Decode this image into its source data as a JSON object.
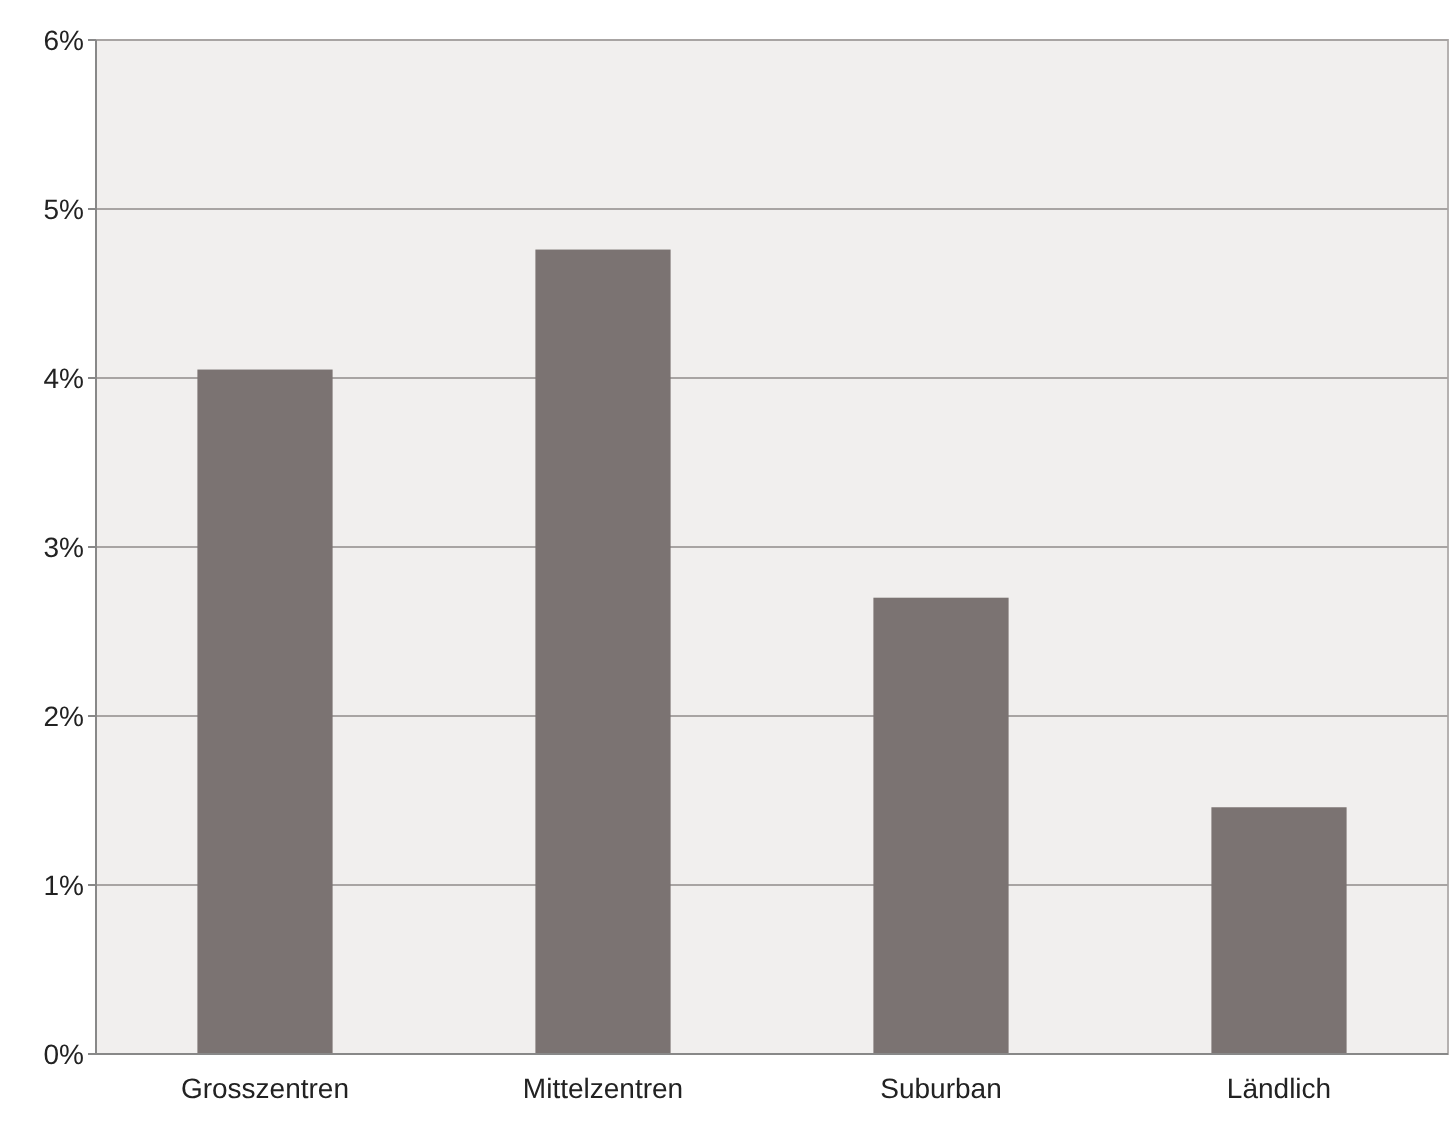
{
  "chart_data": {
    "type": "bar",
    "categories": [
      "Grosszentren",
      "Mittelzentren",
      "Suburban",
      "Ländlich"
    ],
    "values": [
      4.05,
      4.76,
      2.7,
      1.46
    ],
    "color": "#7b7372",
    "ylim": [
      0,
      6
    ],
    "yticks": [
      {
        "value": 0,
        "label": "0%"
      },
      {
        "value": 1,
        "label": "1%"
      },
      {
        "value": 2,
        "label": "2%"
      },
      {
        "value": 3,
        "label": "3%"
      },
      {
        "value": 4,
        "label": "4%"
      },
      {
        "value": 5,
        "label": "5%"
      },
      {
        "value": 6,
        "label": "6%"
      }
    ],
    "grid": "y"
  }
}
